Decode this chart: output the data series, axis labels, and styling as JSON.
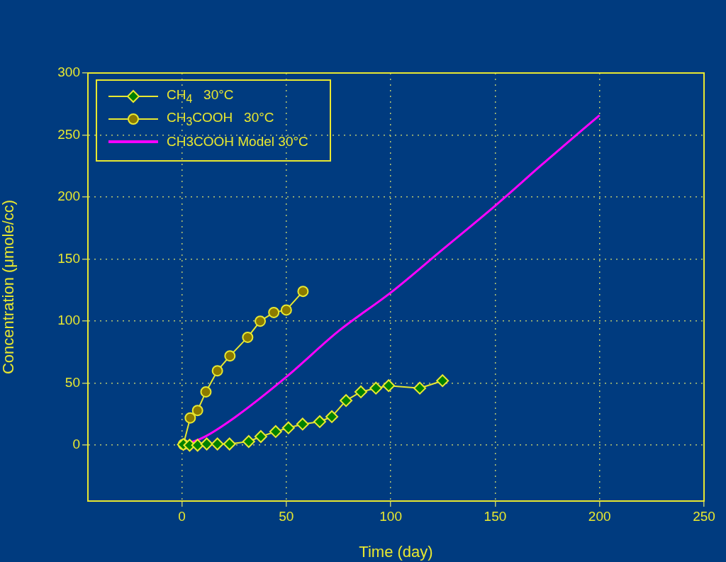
{
  "chart_data": {
    "type": "line",
    "xlabel": "Time (day)",
    "ylabel": "Concentration (μmole/cc)",
    "xlim": [
      -45,
      250
    ],
    "xticks": [
      0,
      50,
      100,
      150,
      200,
      250
    ],
    "ylim": [
      -45,
      300
    ],
    "yticks": [
      0,
      50,
      100,
      150,
      200,
      250,
      300
    ],
    "grid": true,
    "legend": "top left",
    "series": [
      {
        "name": "CH$_{4}$   30°C",
        "color": "#008000",
        "marker": "diamond",
        "x": [
          0.7,
          3.7,
          7.5,
          11.9,
          17,
          22.8,
          32,
          37.8,
          44.9,
          51,
          57.8,
          66,
          71.8,
          78.6,
          85.7,
          92.9,
          99,
          113.9,
          124.8
        ],
        "values": [
          0.6,
          0,
          0,
          1,
          1,
          1,
          3,
          7,
          11,
          14,
          17,
          19,
          23,
          36,
          43,
          46,
          48,
          46,
          52
        ]
      },
      {
        "name": "CH$_{3}$COOH   30°C",
        "color": "#8b7a00",
        "marker": "circle",
        "x": [
          0.7,
          4,
          7.5,
          11.5,
          17,
          23,
          31.5,
          37.5,
          44,
          50,
          58
        ],
        "values": [
          0.6,
          22,
          28,
          43,
          60,
          72,
          87,
          100,
          107,
          109,
          124
        ]
      },
      {
        "name": "CH3COOH Model 30°C",
        "color": "#ff00ff",
        "marker": "none",
        "x": [
          0,
          10,
          25,
          50,
          75,
          100,
          125,
          150,
          175,
          200
        ],
        "values": [
          0,
          6,
          22,
          55,
          92,
          123,
          158,
          193,
          230,
          266
        ]
      }
    ]
  }
}
